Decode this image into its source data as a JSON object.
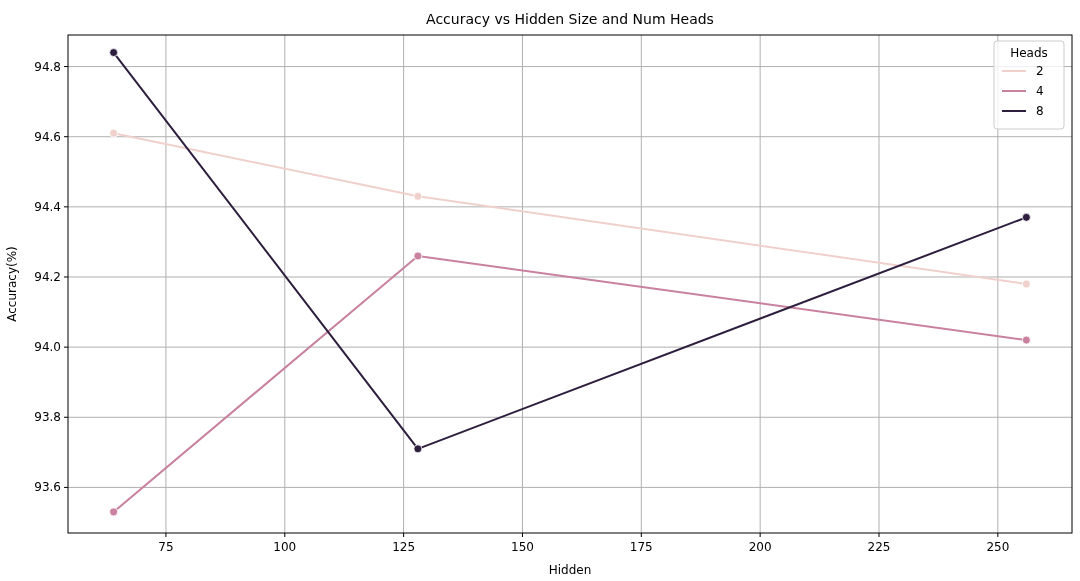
{
  "chart_data": {
    "type": "line",
    "title": "Accuracy vs Hidden Size and Num Heads",
    "xlabel": "Hidden",
    "ylabel": "Accuracy(%)",
    "legend_title": "Heads",
    "x": [
      64,
      128,
      256
    ],
    "series": [
      {
        "name": "2",
        "color": "#efd0cb",
        "values": [
          94.61,
          94.43,
          94.18
        ]
      },
      {
        "name": "4",
        "color": "#c8819e",
        "values": [
          93.53,
          94.26,
          94.02
        ]
      },
      {
        "name": "8",
        "color": "#2d1e3e",
        "values": [
          94.84,
          93.71,
          94.37
        ]
      }
    ],
    "xlim": [
      54.4,
      265.6
    ],
    "xticks": [
      75,
      100,
      125,
      150,
      175,
      200,
      225,
      250
    ],
    "ylim": [
      93.47,
      94.89
    ],
    "yticks": [
      93.6,
      93.8,
      {
        "value": 94,
        "label": "94.0"
      },
      94.2,
      94.4,
      94.6,
      94.8
    ],
    "grid": true,
    "legend": "top right",
    "marker": "circle",
    "line_style": "solid"
  }
}
